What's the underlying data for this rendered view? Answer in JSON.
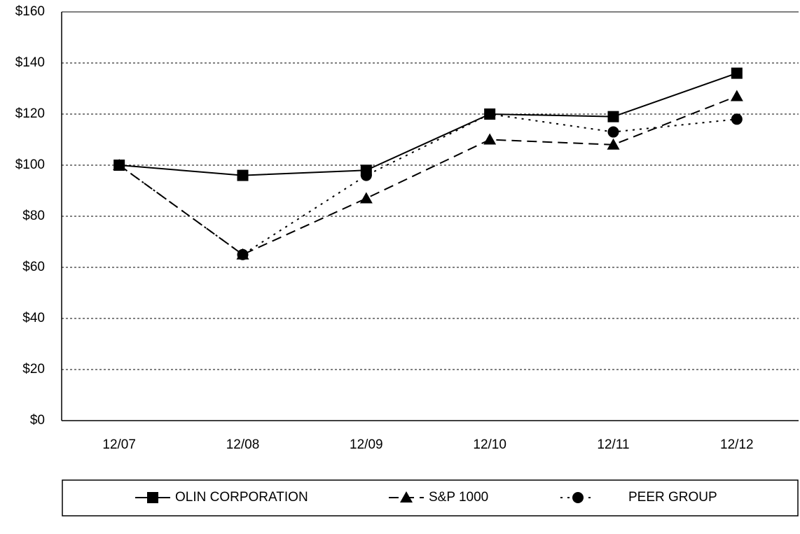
{
  "chart_data": {
    "type": "line",
    "categories": [
      "12/07",
      "12/08",
      "12/09",
      "12/10",
      "12/11",
      "12/12"
    ],
    "series": [
      {
        "name": "OLIN CORPORATION",
        "color": "#000000",
        "dash": "solid",
        "marker": "square",
        "values": [
          100,
          96,
          98,
          120,
          119,
          136
        ]
      },
      {
        "name": "S&P 1000",
        "color": "#000000",
        "dash": "dashed",
        "marker": "triangle",
        "values": [
          100,
          65,
          87,
          110,
          108,
          127
        ]
      },
      {
        "name": "PEER GROUP",
        "color": "#000000",
        "dash": "dotted",
        "marker": "circle",
        "values": [
          100,
          65,
          96,
          120,
          113,
          118
        ]
      }
    ],
    "ylim": [
      0,
      160
    ],
    "yticks": [
      {
        "value": 0,
        "label": "$0"
      },
      {
        "value": 20,
        "label": "$20"
      },
      {
        "value": 40,
        "label": "$40"
      },
      {
        "value": 60,
        "label": "$60"
      },
      {
        "value": 80,
        "label": "$80"
      },
      {
        "value": 100,
        "label": "$100"
      },
      {
        "value": 120,
        "label": "$120"
      },
      {
        "value": 140,
        "label": "$140"
      },
      {
        "value": 160,
        "label": "$160"
      }
    ],
    "grid": true,
    "legend": "bottom"
  }
}
